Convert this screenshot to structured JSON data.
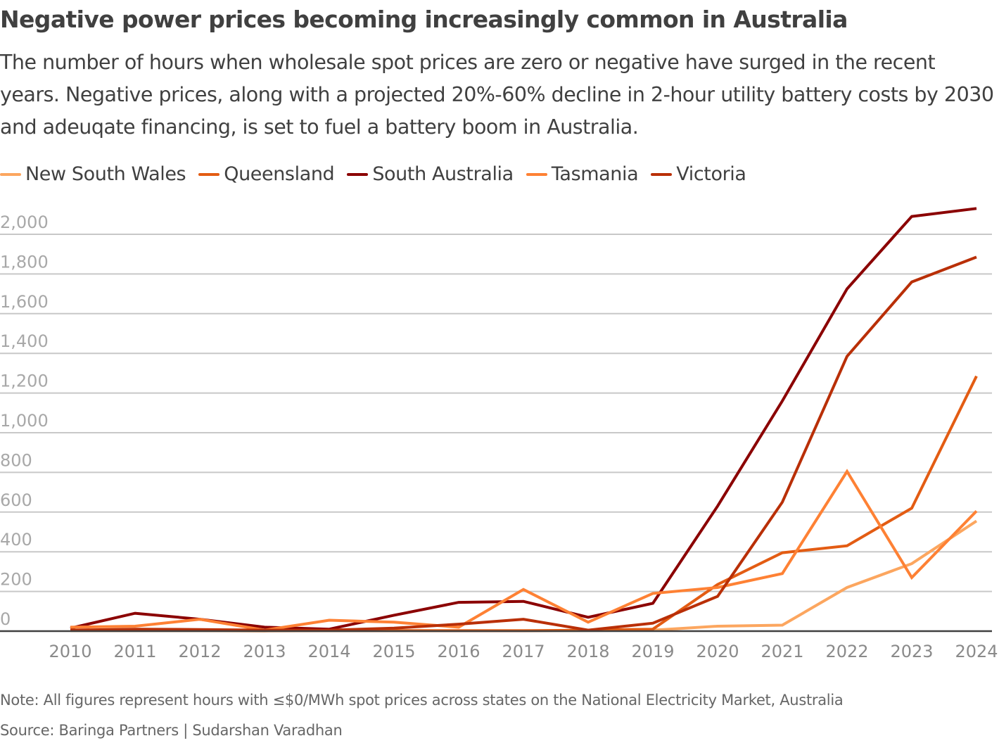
{
  "header": {
    "title": "Negative power prices becoming increasingly common in Australia",
    "subtitle": "The number of hours when wholesale spot prices are zero or negative have surged in the recent years. Negative prices, along with a projected 20%-60% decline in 2-hour utility battery costs by 2030 and adeuqate financing, is set to fuel a battery boom in Australia."
  },
  "footer": {
    "note": "Note: All figures represent hours with ≤$0/MWh spot prices across states on the National Electricity Market, Australia",
    "source": "Source: Baringa Partners | Sudarshan Varadhan"
  },
  "chart_data": {
    "type": "line",
    "title": "Negative power prices becoming increasingly common in Australia",
    "xlabel": "",
    "ylabel": "",
    "x": [
      2010,
      2011,
      2012,
      2013,
      2014,
      2015,
      2016,
      2017,
      2018,
      2019,
      2020,
      2021,
      2022,
      2023,
      2024
    ],
    "ylim": [
      0,
      2000
    ],
    "yticks": [
      0,
      200,
      400,
      600,
      800,
      1000,
      1200,
      1400,
      1600,
      1800,
      2000
    ],
    "ytick_labels": [
      "0",
      "200",
      "400",
      "600",
      "800",
      "1,000",
      "1,200",
      "1,400",
      "1,600",
      "1,800",
      "2,000"
    ],
    "xtick_labels": [
      "2010",
      "2011",
      "2012",
      "2013",
      "2014",
      "2015",
      "2016",
      "2017",
      "2018",
      "2019",
      "2020",
      "2021",
      "2022",
      "2023",
      "2024"
    ],
    "grid": "horizontal",
    "legend_position": "top-left",
    "series": [
      {
        "name": "New South Wales",
        "color": "#fca65f",
        "values": [
          2,
          2,
          2,
          1,
          2,
          2,
          2,
          2,
          3,
          5,
          25,
          30,
          220,
          340,
          555
        ]
      },
      {
        "name": "Queensland",
        "color": "#e35c13",
        "values": [
          5,
          5,
          5,
          3,
          3,
          3,
          2,
          2,
          5,
          10,
          235,
          395,
          430,
          620,
          1285
        ]
      },
      {
        "name": "South Australia",
        "color": "#8b0000",
        "values": [
          15,
          90,
          60,
          20,
          10,
          80,
          145,
          150,
          70,
          140,
          630,
          1160,
          1725,
          2090,
          2130
        ]
      },
      {
        "name": "Tasmania",
        "color": "#fe8134",
        "values": [
          20,
          25,
          60,
          5,
          55,
          45,
          20,
          210,
          45,
          190,
          220,
          290,
          805,
          270,
          605
        ]
      },
      {
        "name": "Victoria",
        "color": "#b92f07",
        "values": [
          5,
          10,
          8,
          5,
          5,
          15,
          35,
          60,
          5,
          40,
          175,
          650,
          1385,
          1760,
          1885
        ]
      }
    ]
  }
}
